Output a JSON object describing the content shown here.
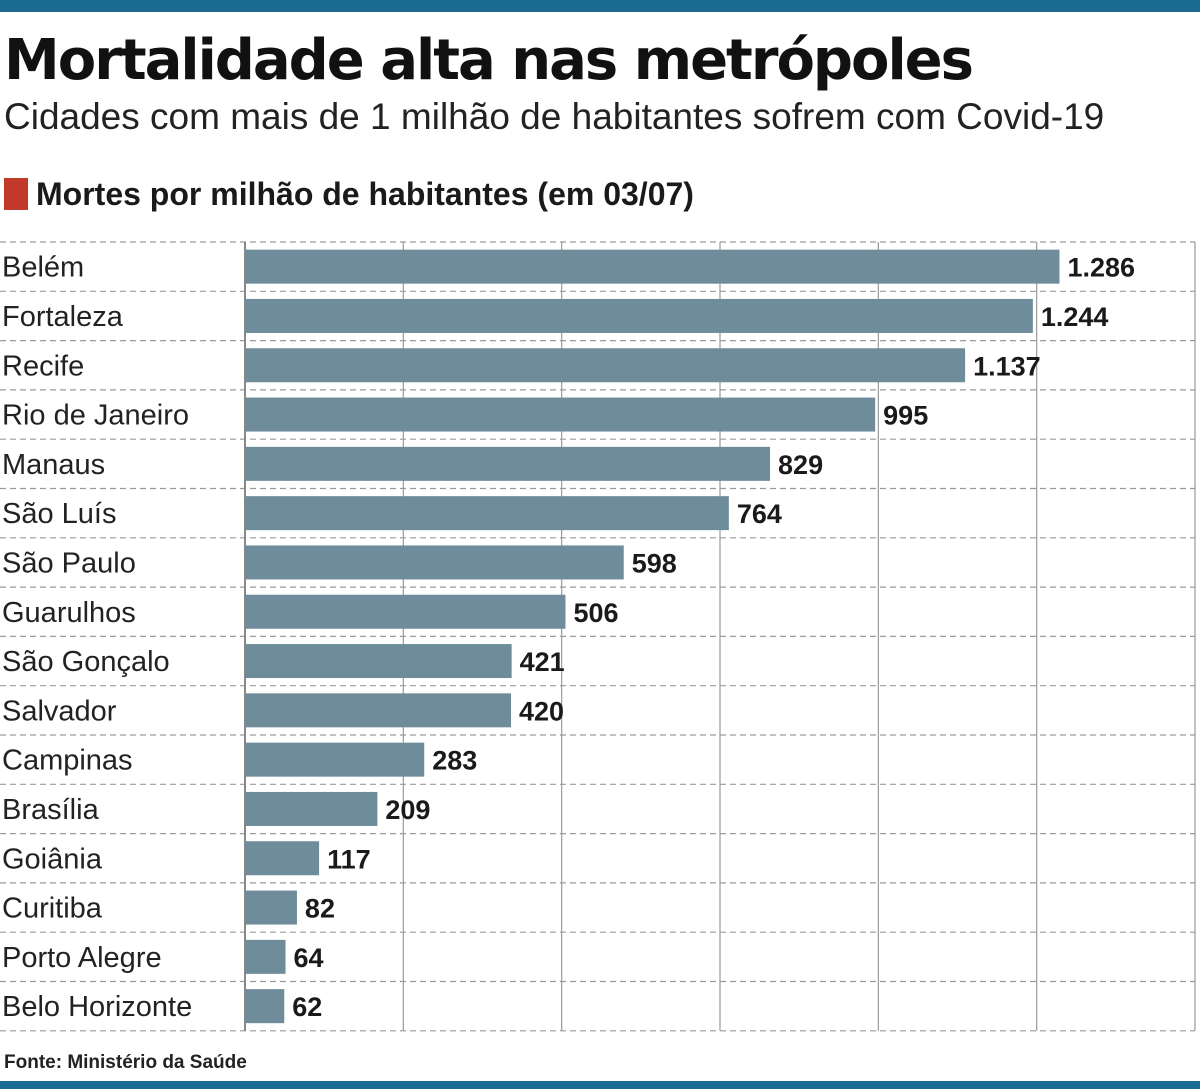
{
  "header": {
    "title": "Mortalidade alta nas metrópoles",
    "subtitle": "Cidades com mais de 1 milhão de habitantes sofrem com Covid-19"
  },
  "legend": {
    "label": "Mortes por milhão de habitantes (em 03/07)",
    "color": "#c0392b"
  },
  "footer": {
    "source": "Fonte: Ministério da Saúde"
  },
  "colors": {
    "bar": "#6e8c9a",
    "rule": "#1b6b93",
    "grid": "#9a9a9a"
  },
  "chart_data": {
    "type": "bar",
    "orientation": "horizontal",
    "title": "Mortes por milhão de habitantes (em 03/07)",
    "categories": [
      "Belém",
      "Fortaleza",
      "Recife",
      "Rio de Janeiro",
      "Manaus",
      "São Luís",
      "São Paulo",
      "Guarulhos",
      "São Gonçalo",
      "Salvador",
      "Campinas",
      "Brasília",
      "Goiânia",
      "Curitiba",
      "Porto Alegre",
      "Belo Horizonte"
    ],
    "values": [
      1286,
      1244,
      1137,
      995,
      829,
      764,
      598,
      506,
      421,
      420,
      283,
      209,
      117,
      82,
      64,
      62
    ],
    "value_labels": [
      "1.286",
      "1.244",
      "1.137",
      "995",
      "829",
      "764",
      "598",
      "506",
      "421",
      "420",
      "283",
      "209",
      "117",
      "82",
      "64",
      "62"
    ],
    "xlim": [
      0,
      1500
    ],
    "grid": true,
    "xlabel": "",
    "ylabel": ""
  }
}
